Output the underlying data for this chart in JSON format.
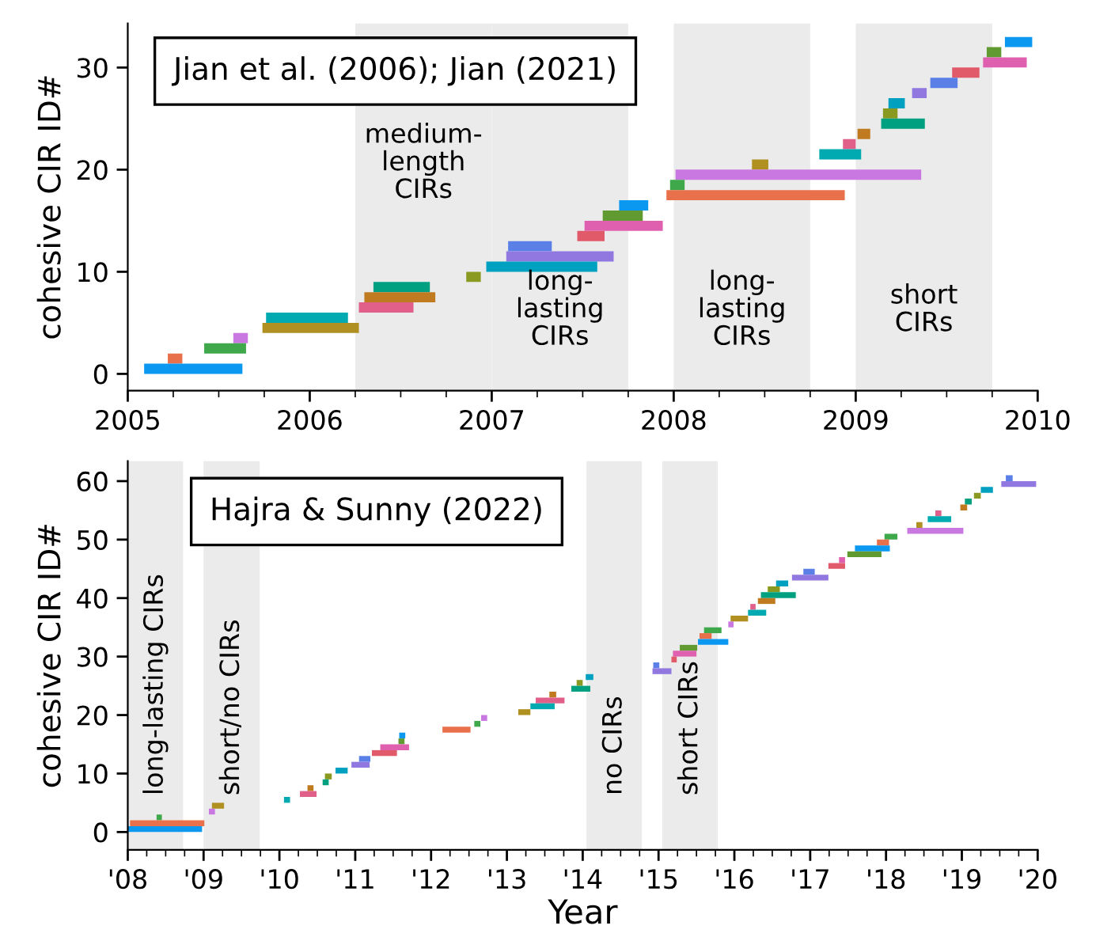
{
  "chart_data": [
    {
      "type": "bar",
      "orientation": "horizontal",
      "title": "Jian et al. (2006); Jian (2021)",
      "ylabel": "cohesive CIR ID#",
      "categories": [
        null,
        null,
        "30",
        null,
        null,
        null,
        null,
        null,
        null,
        null,
        null,
        null,
        "20",
        null,
        null,
        null,
        null,
        null,
        null,
        null,
        null,
        null,
        "10",
        null,
        null,
        null,
        null,
        null,
        null,
        null,
        null,
        null,
        "0"
      ],
      "base": [
        2009.82,
        2009.72,
        2009.7,
        2009.53,
        2009.41,
        2009.31,
        2009.18,
        2009.15,
        2009.14,
        2009.01,
        2008.93,
        2008.8,
        2008.43,
        2008.01,
        2007.98,
        2007.96,
        2007.7,
        2007.61,
        2007.51,
        2007.47,
        2007.09,
        2007.08,
        2006.97,
        2006.86,
        2006.35,
        2006.3,
        2006.27,
        2005.76,
        2005.74,
        2005.58,
        2005.42,
        2005.22,
        2005.09
      ],
      "values": [
        0.15,
        0.08,
        0.24,
        0.15,
        0.15,
        0.08,
        0.09,
        0.08,
        0.24,
        0.07,
        0.07,
        0.23,
        0.09,
        1.35,
        0.08,
        0.98,
        0.16,
        0.22,
        0.43,
        0.15,
        0.24,
        0.59,
        0.61,
        0.08,
        0.31,
        0.39,
        0.3,
        0.45,
        0.53,
        0.08,
        0.23,
        0.08,
        0.54
      ],
      "colors": [
        "#0a98f0",
        "#609a30",
        "#e060b0",
        "#e05a6a",
        "#5a80e8",
        "#9078e0",
        "#00a0c0",
        "#8a9a20",
        "#00a080",
        "#c07a20",
        "#e0608a",
        "#00aab0",
        "#b09020",
        "#c878e0",
        "#3ea84a",
        "#e8704a",
        "#0a98f0",
        "#609a30",
        "#e060b0",
        "#e05a6a",
        "#5a80e8",
        "#9078e0",
        "#00a0c0",
        "#8a9a20",
        "#00a080",
        "#c07a20",
        "#e0608a",
        "#00aab0",
        "#b09020",
        "#c878e0",
        "#3ea84a",
        "#e8704a",
        "#0a98f0"
      ],
      "xlim": [
        2005,
        2010
      ],
      "xticks": [
        2005,
        2006,
        2007,
        2008,
        2009,
        2010
      ],
      "bands": [
        {
          "axis": "x",
          "from": 2006.25,
          "to": 2007.0,
          "label": "medium-\nlength\nCIRs",
          "color": "#ebebeb"
        },
        {
          "axis": "x",
          "from": 2007.0,
          "to": 2007.75,
          "label": "long-\nlasting\nCIRs",
          "color": "#ebebeb"
        },
        {
          "axis": "x",
          "from": 2008.0,
          "to": 2008.75,
          "label": "long-\nlasting\nCIRs",
          "color": "#ebebeb"
        },
        {
          "axis": "x",
          "from": 2009.0,
          "to": 2009.75,
          "label": "short\nCIRs",
          "color": "#ebebeb"
        }
      ],
      "grid": false,
      "legend": false
    },
    {
      "type": "bar",
      "orientation": "horizontal",
      "title": "Hajra & Sunny (2022)",
      "ylabel": "cohesive CIR ID#",
      "xlabel": "Year",
      "categories": [
        "60",
        null,
        null,
        null,
        null,
        null,
        null,
        null,
        null,
        null,
        "50",
        null,
        null,
        null,
        null,
        null,
        null,
        null,
        null,
        null,
        "40",
        null,
        null,
        null,
        null,
        null,
        null,
        null,
        null,
        null,
        "30",
        null,
        null,
        null,
        null,
        null,
        null,
        null,
        null,
        null,
        "20",
        null,
        null,
        null,
        null,
        null,
        null,
        null,
        null,
        null,
        "10",
        null,
        null,
        null,
        null,
        null,
        null,
        null,
        null,
        null,
        "0"
      ],
      "base": [
        2019.58,
        2019.52,
        2019.25,
        2019.16,
        2019.04,
        2018.98,
        2018.65,
        2018.55,
        2018.4,
        2018.28,
        2017.98,
        2017.88,
        2017.59,
        2017.49,
        2017.38,
        2017.24,
        2016.91,
        2016.76,
        2016.55,
        2016.44,
        2016.35,
        2016.31,
        2016.21,
        2016.18,
        2015.95,
        2015.92,
        2015.6,
        2015.54,
        2015.52,
        2015.28,
        2015.19,
        2015.17,
        2014.93,
        2014.92,
        2014.04,
        2013.92,
        2013.85,
        2013.56,
        2013.38,
        2013.31,
        2013.15,
        2012.66,
        2012.57,
        2012.15,
        2011.58,
        2011.57,
        2011.33,
        2011.22,
        2011.05,
        2010.95,
        2010.74,
        2010.6,
        2010.57,
        2010.37,
        2010.27,
        2010.06,
        2009.11,
        2009.07,
        2008.38,
        2008.03,
        2008.0
      ],
      "values": [
        0.09,
        0.46,
        0.16,
        0.09,
        0.09,
        0.09,
        0.08,
        0.31,
        0.08,
        0.74,
        0.17,
        0.16,
        0.46,
        0.45,
        0.08,
        0.22,
        0.15,
        0.48,
        0.16,
        0.16,
        0.46,
        0.23,
        0.07,
        0.24,
        0.23,
        0.07,
        0.23,
        0.16,
        0.4,
        0.23,
        0.31,
        0.07,
        0.08,
        0.25,
        0.1,
        0.08,
        0.25,
        0.09,
        0.38,
        0.32,
        0.16,
        0.08,
        0.08,
        0.37,
        0.08,
        0.08,
        0.38,
        0.33,
        0.15,
        0.24,
        0.16,
        0.09,
        0.08,
        0.08,
        0.22,
        0.08,
        0.16,
        0.08,
        0.07,
        0.98,
        0.98
      ],
      "colors": [
        "#5a80e8",
        "#9078e0",
        "#00a0c0",
        "#8a9a20",
        "#00a080",
        "#c07a20",
        "#e0608a",
        "#00aab0",
        "#b09020",
        "#c878e0",
        "#3ea84a",
        "#e8704a",
        "#0a98f0",
        "#609a30",
        "#e060b0",
        "#e05a6a",
        "#5a80e8",
        "#9078e0",
        "#00a0c0",
        "#8a9a20",
        "#00a080",
        "#c07a20",
        "#e0608a",
        "#00aab0",
        "#b09020",
        "#c878e0",
        "#3ea84a",
        "#e8704a",
        "#0a98f0",
        "#609a30",
        "#e060b0",
        "#e05a6a",
        "#5a80e8",
        "#9078e0",
        "#00a0c0",
        "#8a9a20",
        "#00a080",
        "#c07a20",
        "#e0608a",
        "#00aab0",
        "#b09020",
        "#c878e0",
        "#3ea84a",
        "#e8704a",
        "#0a98f0",
        "#609a30",
        "#e060b0",
        "#e05a6a",
        "#5a80e8",
        "#9078e0",
        "#00a0c0",
        "#8a9a20",
        "#00a080",
        "#c07a20",
        "#e0608a",
        "#00aab0",
        "#b09020",
        "#c878e0",
        "#3ea84a",
        "#e8704a",
        "#0a98f0"
      ],
      "xlim": [
        2008,
        2020
      ],
      "xticks": [
        {
          "value": 2008,
          "label": "'08"
        },
        {
          "value": 2009,
          "label": "'09"
        },
        {
          "value": 2010,
          "label": "'10"
        },
        {
          "value": 2011,
          "label": "'11"
        },
        {
          "value": 2012,
          "label": "'12"
        },
        {
          "value": 2013,
          "label": "'13"
        },
        {
          "value": 2014,
          "label": "'14"
        },
        {
          "value": 2015,
          "label": "'15"
        },
        {
          "value": 2016,
          "label": "'16"
        },
        {
          "value": 2017,
          "label": "'17"
        },
        {
          "value": 2018,
          "label": "'18"
        },
        {
          "value": 2019,
          "label": "'19"
        },
        {
          "value": 2020,
          "label": "'20"
        }
      ],
      "bands": [
        {
          "axis": "x",
          "from": 2008.0,
          "to": 2008.73,
          "label": "long-lasting CIRs",
          "color": "#ebebeb"
        },
        {
          "axis": "x",
          "from": 2009.0,
          "to": 2009.74,
          "label": "short/no CIRs",
          "color": "#ebebeb"
        },
        {
          "axis": "x",
          "from": 2014.05,
          "to": 2014.78,
          "label": "no CIRs",
          "color": "#ebebeb"
        },
        {
          "axis": "x",
          "from": 2015.05,
          "to": 2015.78,
          "label": "short CIRs",
          "color": "#ebebeb"
        }
      ],
      "grid": false,
      "legend": false
    }
  ]
}
